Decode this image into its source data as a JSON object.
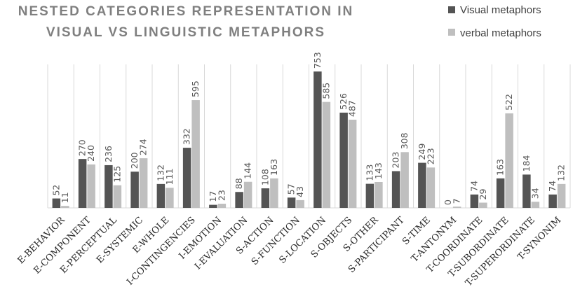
{
  "chart_data": {
    "type": "bar",
    "title": "NESTED CATEGORIES REPRESENTATION IN VISUAL VS LINGUISTIC METAPHORS",
    "title_lines": [
      "NESTED CATEGORIES REPRESENTATION IN",
      "VISUAL VS LINGUISTIC METAPHORS"
    ],
    "xlabel": "",
    "ylabel": "",
    "ylim": [
      0,
      800
    ],
    "grid": "vertical category separators",
    "legend_position": "top-right",
    "categories": [
      "E-BEHAVIOR",
      "E-COMPONENT",
      "E-PERCEPTUAL",
      "E-SYSTEMIC",
      "E-WHOLE",
      "I-CONTINGENCIES",
      "I-EMOTION",
      "I-EVALUATION",
      "S-ACTION",
      "S-FUNCTION",
      "S-LOCATION",
      "S-OBJECTS",
      "S-OTHER",
      "S-PARTICIPANT",
      "S-TIME",
      "T-ANTONYM",
      "T-COORDINATE",
      "T-SUBORDINATE",
      "T-SUPERORDINATE",
      "T-SYNONIM"
    ],
    "series": [
      {
        "name": "Visual metaphors",
        "color": "#545454",
        "values": [
          52,
          270,
          236,
          200,
          132,
          332,
          17,
          88,
          108,
          57,
          753,
          526,
          133,
          203,
          249,
          0,
          74,
          163,
          184,
          74
        ]
      },
      {
        "name": "verbal metaphors",
        "color": "#bfbfbf",
        "values": [
          11,
          240,
          125,
          274,
          111,
          595,
          23,
          144,
          163,
          43,
          585,
          487,
          143,
          308,
          223,
          7,
          29,
          522,
          34,
          132
        ]
      }
    ]
  }
}
